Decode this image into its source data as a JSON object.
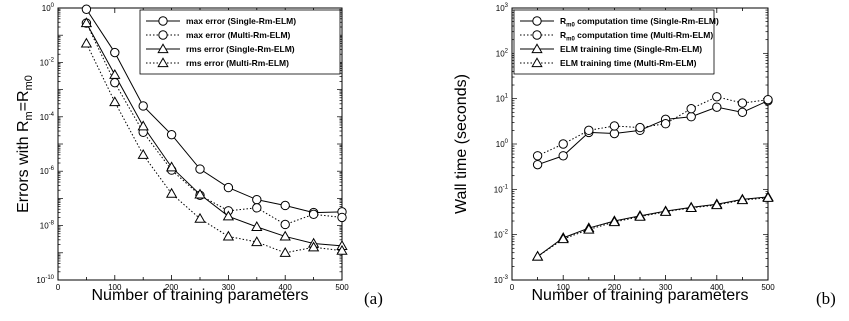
{
  "chart_data": [
    {
      "type": "line",
      "panel_label": "(a)",
      "xlabel": "Number of training parameters",
      "ylabel": "Errors with R",
      "ylabel_sub": "m",
      "ylabel_eq": "=R",
      "ylabel_sub2": "m0",
      "xlim": [
        0,
        500
      ],
      "xticks": [
        "0",
        "100",
        "200",
        "300",
        "400",
        "500"
      ],
      "ylim_log10": [
        -10,
        0
      ],
      "yscale": "log",
      "yticks": [
        {
          "base": "10",
          "exp": "-10"
        },
        {
          "base": "10",
          "exp": "-8"
        },
        {
          "base": "10",
          "exp": "-6"
        },
        {
          "base": "10",
          "exp": "-4"
        },
        {
          "base": "10",
          "exp": "-2"
        },
        {
          "base": "10",
          "exp": "0"
        }
      ],
      "legend_position": "top-right",
      "x": [
        50,
        100,
        150,
        200,
        250,
        300,
        350,
        400,
        450,
        500
      ],
      "series": [
        {
          "name": "max error (Single-Rm-ELM)",
          "marker": "circle",
          "dash": "solid",
          "values": [
            0.9,
            0.023,
            0.00025,
            2.2e-05,
            1.2e-06,
            2.5e-07,
            9e-08,
            5.5e-08,
            3e-08,
            3.2e-08
          ]
        },
        {
          "name": "max error (Multi-Rm-ELM)",
          "marker": "circle",
          "dash": "dotted",
          "values": [
            0.28,
            0.0018,
            2.7e-05,
            1.1e-06,
            1.3e-07,
            3.5e-08,
            4.5e-08,
            1.1e-08,
            2.6e-08,
            2e-08
          ]
        },
        {
          "name": "rms error (Single-Rm-ELM)",
          "marker": "triangle",
          "dash": "solid",
          "values": [
            0.28,
            0.0035,
            4.5e-05,
            1.4e-06,
            1.4e-07,
            2.2e-08,
            9e-09,
            4e-09,
            2.2e-09,
            1.8e-09
          ]
        },
        {
          "name": "rms error (Multi-Rm-ELM)",
          "marker": "triangle",
          "dash": "dotted",
          "values": [
            0.05,
            0.00035,
            4e-06,
            1.5e-07,
            1.8e-08,
            4e-09,
            2.5e-09,
            1e-09,
            1.6e-09,
            1.2e-09
          ]
        }
      ]
    },
    {
      "type": "line",
      "panel_label": "(b)",
      "xlabel": "Number of training parameters",
      "ylabel": "Wall time (seconds)",
      "xlim": [
        0,
        500
      ],
      "xticks": [
        "0",
        "100",
        "200",
        "300",
        "400",
        "500"
      ],
      "ylim_log10": [
        -3,
        3
      ],
      "yscale": "log",
      "yticks": [
        {
          "base": "10",
          "exp": "-3"
        },
        {
          "base": "10",
          "exp": "-2"
        },
        {
          "base": "10",
          "exp": "-1"
        },
        {
          "base": "10",
          "exp": "0"
        },
        {
          "base": "10",
          "exp": "1"
        },
        {
          "base": "10",
          "exp": "2"
        },
        {
          "base": "10",
          "exp": "3"
        }
      ],
      "legend_position": "top-left",
      "x": [
        50,
        100,
        150,
        200,
        250,
        300,
        350,
        400,
        450,
        500
      ],
      "series": [
        {
          "name": "R",
          "name_sub": "m0",
          "name_rest": " computation time (Single-Rm-ELM)",
          "marker": "circle",
          "dash": "solid",
          "values": [
            0.35,
            0.55,
            1.8,
            1.7,
            2.0,
            3.5,
            4.0,
            6.5,
            5.0,
            9.0
          ]
        },
        {
          "name": "R",
          "name_sub": "m0",
          "name_rest": " computation time (Multi-Rm-ELM)",
          "marker": "circle",
          "dash": "dotted",
          "values": [
            0.55,
            1.0,
            2.0,
            2.5,
            2.3,
            2.8,
            6.0,
            11.0,
            8.0,
            9.5
          ]
        },
        {
          "name": "ELM training time (Single-Rm-ELM)",
          "marker": "triangle",
          "dash": "solid",
          "values": [
            0.0033,
            0.0085,
            0.014,
            0.02,
            0.026,
            0.033,
            0.04,
            0.047,
            0.06,
            0.068
          ]
        },
        {
          "name": "ELM training time (Multi-Rm-ELM)",
          "marker": "triangle",
          "dash": "dotted",
          "values": [
            0.0033,
            0.008,
            0.013,
            0.019,
            0.025,
            0.032,
            0.039,
            0.045,
            0.058,
            0.065
          ]
        }
      ]
    }
  ]
}
